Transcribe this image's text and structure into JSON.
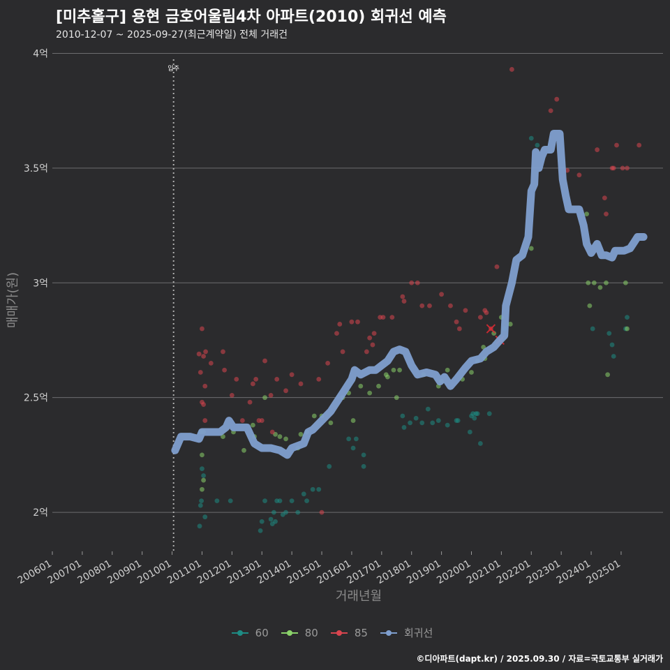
{
  "chart_data": {
    "type": "scatter",
    "title": "[미추홀구] 용현 금호어울림4차 아파트(2010) 회귀선 예측",
    "subtitle": "2010-12-07 ~ 2025-09-27(최근계약일) 전체 거래건",
    "caption": "©디아파트(dapt.kr) / 2025.09.30 / 자료=국토교통부 실거래가",
    "xlabel": "거래년월",
    "ylabel": "매매가(원)",
    "xlim": [
      2006.0,
      2026.4
    ],
    "ylim": [
      1.83,
      4.05
    ],
    "y_ticks": [
      2.0,
      2.5,
      3.0,
      3.5,
      4.0
    ],
    "y_tick_labels": [
      "2억",
      "2.5억",
      "3억",
      "3.5억",
      "4억"
    ],
    "x_ticks": [
      2006,
      2007,
      2008,
      2009,
      2010,
      2011,
      2012,
      2013,
      2014,
      2015,
      2016,
      2017,
      2018,
      2019,
      2020,
      2021,
      2022,
      2023,
      2024,
      2025
    ],
    "x_tick_labels": [
      "200601",
      "200701",
      "200801",
      "200901",
      "201001",
      "201101",
      "201201",
      "201301",
      "201401",
      "201501",
      "201601",
      "201701",
      "201801",
      "201901",
      "202001",
      "202101",
      "202201",
      "202301",
      "202401",
      "202501"
    ],
    "annotation": {
      "label": "입주",
      "x": 2010.05
    },
    "colors": {
      "60": "#1e8c84",
      "80": "#8bd26a",
      "85": "#d9454f",
      "regression": "#7f9fcf"
    },
    "legend": [
      {
        "key": "60",
        "label": "60"
      },
      {
        "key": "80",
        "label": "80"
      },
      {
        "key": "85",
        "label": "85"
      },
      {
        "key": "regression",
        "label": "회귀선"
      }
    ],
    "series": [
      {
        "name": "60",
        "points": [
          [
            2010.92,
            1.94
          ],
          [
            2010.95,
            2.03
          ],
          [
            2010.98,
            2.05
          ],
          [
            2011.0,
            2.19
          ],
          [
            2011.05,
            2.16
          ],
          [
            2011.1,
            1.98
          ],
          [
            2011.5,
            2.05
          ],
          [
            2011.95,
            2.05
          ],
          [
            2012.95,
            1.92
          ],
          [
            2013.0,
            1.96
          ],
          [
            2013.1,
            2.05
          ],
          [
            2013.3,
            1.97
          ],
          [
            2013.35,
            1.95
          ],
          [
            2013.4,
            2.0
          ],
          [
            2013.45,
            1.96
          ],
          [
            2013.5,
            2.05
          ],
          [
            2013.6,
            2.05
          ],
          [
            2013.7,
            1.99
          ],
          [
            2013.8,
            2.0
          ],
          [
            2014.0,
            2.05
          ],
          [
            2014.2,
            2.0
          ],
          [
            2014.4,
            2.08
          ],
          [
            2014.5,
            2.05
          ],
          [
            2014.7,
            2.1
          ],
          [
            2014.9,
            2.1
          ],
          [
            2015.25,
            2.2
          ],
          [
            2015.9,
            2.32
          ],
          [
            2016.05,
            2.28
          ],
          [
            2016.15,
            2.32
          ],
          [
            2016.4,
            2.2
          ],
          [
            2016.4,
            2.25
          ],
          [
            2017.7,
            2.42
          ],
          [
            2017.75,
            2.37
          ],
          [
            2017.95,
            2.39
          ],
          [
            2018.15,
            2.41
          ],
          [
            2018.35,
            2.39
          ],
          [
            2018.55,
            2.45
          ],
          [
            2018.7,
            2.39
          ],
          [
            2018.9,
            2.4
          ],
          [
            2019.2,
            2.38
          ],
          [
            2019.5,
            2.4
          ],
          [
            2019.55,
            2.4
          ],
          [
            2019.95,
            2.35
          ],
          [
            2020.0,
            2.42
          ],
          [
            2020.05,
            2.43
          ],
          [
            2020.1,
            2.41
          ],
          [
            2020.15,
            2.43
          ],
          [
            2020.2,
            2.43
          ],
          [
            2020.3,
            2.3
          ],
          [
            2020.6,
            2.43
          ],
          [
            2021.1,
            2.8
          ],
          [
            2022.0,
            3.63
          ],
          [
            2022.2,
            3.6
          ],
          [
            2024.05,
            2.8
          ],
          [
            2024.6,
            2.78
          ],
          [
            2024.7,
            2.73
          ],
          [
            2024.75,
            2.68
          ],
          [
            2025.2,
            2.85
          ],
          [
            2025.15,
            2.8
          ]
        ]
      },
      {
        "name": "80",
        "points": [
          [
            2010.95,
            2.35
          ],
          [
            2011.0,
            2.25
          ],
          [
            2011.05,
            2.14
          ],
          [
            2011.0,
            2.1
          ],
          [
            2011.05,
            2.35
          ],
          [
            2011.7,
            2.33
          ],
          [
            2012.05,
            2.35
          ],
          [
            2012.4,
            2.27
          ],
          [
            2012.7,
            2.38
          ],
          [
            2012.75,
            2.33
          ],
          [
            2013.1,
            2.5
          ],
          [
            2013.45,
            2.34
          ],
          [
            2013.6,
            2.33
          ],
          [
            2013.8,
            2.32
          ],
          [
            2014.2,
            2.28
          ],
          [
            2014.3,
            2.34
          ],
          [
            2014.5,
            2.35
          ],
          [
            2014.75,
            2.42
          ],
          [
            2015.0,
            2.42
          ],
          [
            2015.3,
            2.39
          ],
          [
            2015.7,
            2.5
          ],
          [
            2015.9,
            2.52
          ],
          [
            2016.05,
            2.4
          ],
          [
            2016.3,
            2.55
          ],
          [
            2016.6,
            2.52
          ],
          [
            2016.9,
            2.55
          ],
          [
            2017.15,
            2.6
          ],
          [
            2017.2,
            2.59
          ],
          [
            2017.4,
            2.62
          ],
          [
            2017.6,
            2.62
          ],
          [
            2017.5,
            2.5
          ],
          [
            2018.4,
            2.6
          ],
          [
            2018.9,
            2.55
          ],
          [
            2019.0,
            2.57
          ],
          [
            2019.2,
            2.62
          ],
          [
            2019.7,
            2.58
          ],
          [
            2020.0,
            2.61
          ],
          [
            2020.2,
            2.66
          ],
          [
            2020.4,
            2.72
          ],
          [
            2020.45,
            2.67
          ],
          [
            2020.75,
            2.78
          ],
          [
            2021.0,
            2.85
          ],
          [
            2021.3,
            2.82
          ],
          [
            2022.0,
            3.15
          ],
          [
            2023.85,
            3.3
          ],
          [
            2023.9,
            3.0
          ],
          [
            2023.95,
            2.9
          ],
          [
            2024.1,
            3.0
          ],
          [
            2024.3,
            2.98
          ],
          [
            2024.5,
            3.0
          ],
          [
            2024.55,
            2.6
          ],
          [
            2025.15,
            3.0
          ],
          [
            2025.2,
            2.8
          ]
        ]
      },
      {
        "name": "85",
        "points": [
          [
            2010.9,
            2.69
          ],
          [
            2010.95,
            2.61
          ],
          [
            2011.0,
            2.8
          ],
          [
            2011.05,
            2.68
          ],
          [
            2011.1,
            2.55
          ],
          [
            2011.12,
            2.7
          ],
          [
            2011.0,
            2.48
          ],
          [
            2011.05,
            2.47
          ],
          [
            2011.1,
            2.4
          ],
          [
            2011.3,
            2.65
          ],
          [
            2011.7,
            2.7
          ],
          [
            2011.75,
            2.62
          ],
          [
            2012.0,
            2.51
          ],
          [
            2012.15,
            2.58
          ],
          [
            2012.35,
            2.4
          ],
          [
            2012.6,
            2.48
          ],
          [
            2012.7,
            2.56
          ],
          [
            2012.8,
            2.58
          ],
          [
            2012.9,
            2.4
          ],
          [
            2013.0,
            2.4
          ],
          [
            2013.1,
            2.66
          ],
          [
            2013.3,
            2.51
          ],
          [
            2013.35,
            2.35
          ],
          [
            2013.5,
            2.58
          ],
          [
            2013.8,
            2.53
          ],
          [
            2014.0,
            2.6
          ],
          [
            2014.3,
            2.56
          ],
          [
            2014.9,
            2.58
          ],
          [
            2015.0,
            2.0
          ],
          [
            2015.2,
            2.65
          ],
          [
            2015.5,
            2.78
          ],
          [
            2015.6,
            2.82
          ],
          [
            2015.7,
            2.7
          ],
          [
            2016.0,
            2.83
          ],
          [
            2016.2,
            2.83
          ],
          [
            2016.5,
            2.7
          ],
          [
            2016.6,
            2.76
          ],
          [
            2016.7,
            2.73
          ],
          [
            2016.75,
            2.78
          ],
          [
            2016.95,
            2.85
          ],
          [
            2017.05,
            2.85
          ],
          [
            2017.35,
            2.85
          ],
          [
            2017.7,
            2.94
          ],
          [
            2017.75,
            2.92
          ],
          [
            2018.0,
            3.0
          ],
          [
            2018.2,
            3.0
          ],
          [
            2018.35,
            2.9
          ],
          [
            2018.6,
            2.9
          ],
          [
            2019.0,
            2.95
          ],
          [
            2019.3,
            2.9
          ],
          [
            2019.5,
            2.83
          ],
          [
            2019.6,
            2.8
          ],
          [
            2019.8,
            2.88
          ],
          [
            2020.3,
            2.85
          ],
          [
            2020.45,
            2.88
          ],
          [
            2020.5,
            2.87
          ],
          [
            2020.65,
            2.8
          ],
          [
            2020.85,
            3.07
          ],
          [
            2021.0,
            2.75
          ],
          [
            2021.35,
            3.93
          ],
          [
            2022.65,
            3.75
          ],
          [
            2022.85,
            3.8
          ],
          [
            2023.2,
            3.49
          ],
          [
            2023.6,
            3.47
          ],
          [
            2024.2,
            3.58
          ],
          [
            2024.45,
            3.37
          ],
          [
            2024.5,
            3.3
          ],
          [
            2024.7,
            3.5
          ],
          [
            2024.75,
            3.5
          ],
          [
            2024.85,
            3.6
          ],
          [
            2025.05,
            3.5
          ],
          [
            2025.2,
            3.5
          ],
          [
            2025.6,
            3.6
          ]
        ]
      }
    ],
    "regression": [
      [
        2010.1,
        2.27
      ],
      [
        2010.3,
        2.33
      ],
      [
        2010.6,
        2.33
      ],
      [
        2010.9,
        2.32
      ],
      [
        2011.0,
        2.35
      ],
      [
        2011.3,
        2.35
      ],
      [
        2011.6,
        2.35
      ],
      [
        2011.8,
        2.37
      ],
      [
        2011.9,
        2.4
      ],
      [
        2012.05,
        2.37
      ],
      [
        2012.5,
        2.37
      ],
      [
        2012.75,
        2.3
      ],
      [
        2013.0,
        2.28
      ],
      [
        2013.3,
        2.28
      ],
      [
        2013.6,
        2.27
      ],
      [
        2013.85,
        2.25
      ],
      [
        2014.0,
        2.28
      ],
      [
        2014.2,
        2.29
      ],
      [
        2014.4,
        2.3
      ],
      [
        2014.55,
        2.35
      ],
      [
        2014.7,
        2.36
      ],
      [
        2015.0,
        2.4
      ],
      [
        2015.3,
        2.44
      ],
      [
        2015.45,
        2.47
      ],
      [
        2015.7,
        2.52
      ],
      [
        2015.85,
        2.55
      ],
      [
        2016.0,
        2.58
      ],
      [
        2016.1,
        2.62
      ],
      [
        2016.3,
        2.6
      ],
      [
        2016.6,
        2.62
      ],
      [
        2016.8,
        2.62
      ],
      [
        2017.0,
        2.64
      ],
      [
        2017.2,
        2.66
      ],
      [
        2017.4,
        2.7
      ],
      [
        2017.6,
        2.71
      ],
      [
        2017.8,
        2.7
      ],
      [
        2018.0,
        2.64
      ],
      [
        2018.2,
        2.6
      ],
      [
        2018.5,
        2.61
      ],
      [
        2018.8,
        2.6
      ],
      [
        2018.95,
        2.57
      ],
      [
        2019.1,
        2.59
      ],
      [
        2019.3,
        2.55
      ],
      [
        2019.5,
        2.58
      ],
      [
        2019.8,
        2.63
      ],
      [
        2020.0,
        2.66
      ],
      [
        2020.3,
        2.67
      ],
      [
        2020.5,
        2.7
      ],
      [
        2020.75,
        2.72
      ],
      [
        2020.95,
        2.75
      ],
      [
        2021.1,
        2.77
      ],
      [
        2021.15,
        2.9
      ],
      [
        2021.35,
        3.0
      ],
      [
        2021.5,
        3.1
      ],
      [
        2021.7,
        3.12
      ],
      [
        2021.9,
        3.2
      ],
      [
        2022.0,
        3.4
      ],
      [
        2022.1,
        3.43
      ],
      [
        2022.15,
        3.57
      ],
      [
        2022.25,
        3.5
      ],
      [
        2022.35,
        3.55
      ],
      [
        2022.45,
        3.58
      ],
      [
        2022.65,
        3.58
      ],
      [
        2022.75,
        3.65
      ],
      [
        2022.95,
        3.65
      ],
      [
        2023.05,
        3.45
      ],
      [
        2023.15,
        3.38
      ],
      [
        2023.25,
        3.32
      ],
      [
        2023.6,
        3.32
      ],
      [
        2023.75,
        3.25
      ],
      [
        2023.85,
        3.17
      ],
      [
        2024.0,
        3.13
      ],
      [
        2024.2,
        3.17
      ],
      [
        2024.35,
        3.12
      ],
      [
        2024.5,
        3.12
      ],
      [
        2024.7,
        3.11
      ],
      [
        2024.8,
        3.14
      ],
      [
        2025.1,
        3.14
      ],
      [
        2025.3,
        3.15
      ],
      [
        2025.45,
        3.18
      ],
      [
        2025.55,
        3.2
      ],
      [
        2025.75,
        3.2
      ]
    ],
    "highlights": [
      [
        2020.65,
        2.8
      ],
      [
        2020.95,
        2.75
      ]
    ]
  }
}
